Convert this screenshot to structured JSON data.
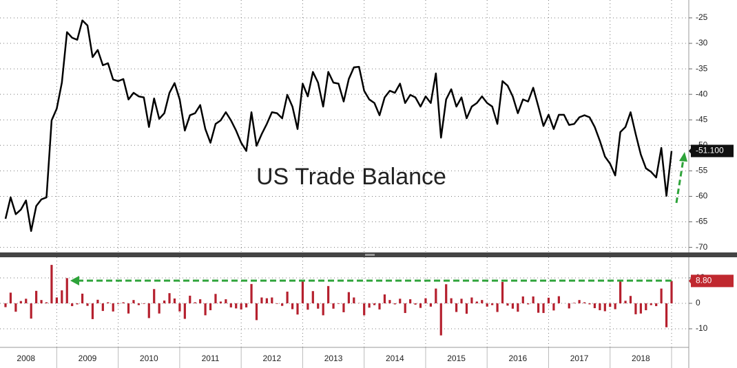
{
  "chart_data": [
    {
      "type": "line",
      "annotation": "US Trade Balance",
      "color": "#000000",
      "grid": true,
      "ylim": [
        -71,
        -21.5
      ],
      "yticks": [
        -25,
        -30,
        -35,
        -40,
        -45,
        -50,
        -55,
        -60,
        -65,
        -70
      ],
      "values": [
        -64.4,
        -60.2,
        -63.5,
        -62.6,
        -60.8,
        -66.8,
        -61.9,
        -60.6,
        -60.2,
        -45.1,
        -42.8,
        -37.7,
        -27.8,
        -28.9,
        -29.3,
        -25.5,
        -26.5,
        -32.7,
        -31.3,
        -34.3,
        -33.9,
        -37.1,
        -37.4,
        -37.0,
        -41.0,
        -39.7,
        -40.4,
        -40.6,
        -46.4,
        -40.8,
        -44.8,
        -43.7,
        -39.7,
        -37.8,
        -41.0,
        -47.1,
        -44.1,
        -43.7,
        -42.1,
        -46.8,
        -49.5,
        -45.8,
        -45.1,
        -43.5,
        -45.1,
        -47.1,
        -49.5,
        -51.1,
        -43.5,
        -50.1,
        -47.8,
        -45.8,
        -43.5,
        -43.7,
        -44.7,
        -40.1,
        -42.4,
        -46.8,
        -37.9,
        -40.4,
        -35.6,
        -37.7,
        -42.4,
        -35.6,
        -37.7,
        -37.9,
        -41.4,
        -37.0,
        -34.7,
        -34.6,
        -39.3,
        -41.0,
        -41.7,
        -44.1,
        -40.6,
        -39.3,
        -39.7,
        -37.9,
        -41.7,
        -40.1,
        -40.6,
        -42.4,
        -40.4,
        -41.7,
        -35.9,
        -48.5,
        -41.0,
        -39.0,
        -42.4,
        -40.6,
        -44.7,
        -42.4,
        -41.7,
        -40.4,
        -41.7,
        -42.4,
        -45.8,
        -37.4,
        -38.3,
        -40.4,
        -43.7,
        -41.0,
        -41.4,
        -38.7,
        -42.4,
        -46.2,
        -44.0,
        -46.8,
        -44.0,
        -44.0,
        -46.0,
        -45.8,
        -44.5,
        -44.1,
        -44.5,
        -46.4,
        -49.1,
        -52.2,
        -53.6,
        -55.9,
        -47.4,
        -46.4,
        -43.5,
        -47.8,
        -51.8,
        -54.5,
        -55.2,
        -56.3,
        -50.5,
        -59.9,
        -51.1
      ],
      "value_labels": [
        null,
        null,
        null,
        null,
        null,
        null,
        null,
        null,
        null,
        null,
        null,
        null,
        null,
        null,
        null,
        null,
        null,
        null,
        null,
        null,
        null,
        null,
        null,
        null,
        null,
        null,
        null,
        null,
        null,
        null,
        null,
        null,
        null,
        null,
        null,
        null,
        null,
        null,
        null,
        null,
        null,
        null,
        null,
        null,
        null,
        null,
        null,
        null,
        null,
        null,
        null,
        null,
        null,
        null,
        null,
        null,
        null,
        null,
        null,
        null,
        null,
        null,
        null,
        null,
        null,
        null,
        null,
        null,
        null,
        null,
        null,
        null,
        null,
        null,
        null,
        null,
        null,
        null,
        null,
        null,
        null,
        null,
        null,
        null,
        null,
        null,
        null,
        null,
        null,
        null,
        null,
        null,
        null,
        null,
        null,
        null,
        null,
        null,
        null,
        null,
        null,
        null,
        null,
        null,
        null,
        null,
        null,
        null,
        null,
        null,
        null,
        null,
        null,
        null,
        null,
        null,
        null,
        null,
        null,
        null,
        null,
        null,
        null,
        null,
        null,
        null,
        null,
        null,
        null,
        null,
        "-51.100"
      ]
    },
    {
      "type": "bar",
      "color": "#b5202e",
      "grid": true,
      "ylim": [
        -17.3,
        18.1
      ],
      "yticks": [
        10,
        0,
        -10
      ],
      "categories": [
        null,
        null,
        null,
        null,
        "2008",
        null,
        null,
        null,
        null,
        null,
        null,
        null,
        null,
        null,
        null,
        null,
        "2009",
        null,
        null,
        null,
        null,
        null,
        null,
        null,
        null,
        null,
        null,
        null,
        "2010",
        null,
        null,
        null,
        null,
        null,
        null,
        null,
        null,
        null,
        null,
        null,
        "2011",
        null,
        null,
        null,
        null,
        null,
        null,
        null,
        null,
        null,
        null,
        null,
        "2012",
        null,
        null,
        null,
        null,
        null,
        null,
        null,
        null,
        null,
        null,
        null,
        "2013",
        null,
        null,
        null,
        null,
        null,
        null,
        null,
        null,
        null,
        null,
        null,
        "2014",
        null,
        null,
        null,
        null,
        null,
        null,
        null,
        null,
        null,
        null,
        null,
        "2015",
        null,
        null,
        null,
        null,
        null,
        null,
        null,
        null,
        null,
        null,
        null,
        "2016",
        null,
        null,
        null,
        null,
        null,
        null,
        null,
        null,
        null,
        null,
        null,
        "2017",
        null,
        null,
        null,
        null,
        null,
        null,
        null,
        null,
        null,
        null,
        null,
        "2018",
        null,
        null,
        null,
        null,
        null,
        null
      ],
      "values": [
        -1.5,
        4.2,
        -3.3,
        0.9,
        1.8,
        -6.0,
        4.9,
        1.3,
        0.4,
        15.1,
        2.3,
        5.1,
        9.9,
        -1.1,
        -0.4,
        3.8,
        -1.0,
        -6.2,
        1.4,
        -3.0,
        0.4,
        -3.2,
        -0.3,
        0.4,
        -4.0,
        1.3,
        -0.7,
        -0.2,
        -5.8,
        5.6,
        -4.0,
        1.1,
        4.0,
        1.9,
        -3.2,
        -6.1,
        3.0,
        0.4,
        1.6,
        -4.7,
        -2.7,
        3.7,
        0.7,
        1.6,
        -1.6,
        -2.0,
        -2.4,
        -1.6,
        7.6,
        -6.6,
        2.3,
        2.0,
        2.3,
        -0.2,
        -1.0,
        4.6,
        -2.3,
        -4.4,
        8.9,
        -2.5,
        4.8,
        -2.1,
        -4.7,
        6.8,
        -2.1,
        -0.2,
        -3.5,
        4.4,
        2.3,
        0.1,
        -4.7,
        -1.7,
        -0.7,
        -2.4,
        3.5,
        1.3,
        -0.4,
        1.8,
        -3.8,
        1.6,
        -0.5,
        -1.8,
        2.0,
        -1.3,
        5.8,
        -12.6,
        7.5,
        2.0,
        -3.4,
        1.8,
        -4.1,
        2.3,
        0.7,
        1.3,
        -1.3,
        -0.7,
        -3.4,
        8.4,
        -0.9,
        -2.1,
        -3.3,
        2.7,
        -0.4,
        2.7,
        -3.7,
        -3.8,
        2.2,
        -2.8,
        2.8,
        0.0,
        -2.0,
        0.2,
        1.3,
        0.4,
        -0.4,
        -1.9,
        -2.7,
        -3.1,
        -1.4,
        -2.3,
        8.5,
        1.0,
        2.9,
        -4.3,
        -4.0,
        -2.7,
        -0.7,
        -1.1,
        5.8,
        -9.4,
        8.8
      ],
      "value_labels": [
        null,
        null,
        null,
        null,
        null,
        null,
        null,
        null,
        null,
        null,
        null,
        null,
        null,
        null,
        null,
        null,
        null,
        null,
        null,
        null,
        null,
        null,
        null,
        null,
        null,
        null,
        null,
        null,
        null,
        null,
        null,
        null,
        null,
        null,
        null,
        null,
        null,
        null,
        null,
        null,
        null,
        null,
        null,
        null,
        null,
        null,
        null,
        null,
        null,
        null,
        null,
        null,
        null,
        null,
        null,
        null,
        null,
        null,
        null,
        null,
        null,
        null,
        null,
        null,
        null,
        null,
        null,
        null,
        null,
        null,
        null,
        null,
        null,
        null,
        null,
        null,
        null,
        null,
        null,
        null,
        null,
        null,
        null,
        null,
        null,
        null,
        null,
        null,
        null,
        null,
        null,
        null,
        null,
        null,
        null,
        null,
        null,
        null,
        null,
        null,
        null,
        null,
        null,
        null,
        null,
        null,
        null,
        null,
        null,
        null,
        null,
        null,
        null,
        null,
        null,
        null,
        null,
        null,
        null,
        null,
        null,
        null,
        null,
        null,
        null,
        null,
        null,
        null,
        null,
        null,
        "8.80"
      ]
    }
  ]
}
